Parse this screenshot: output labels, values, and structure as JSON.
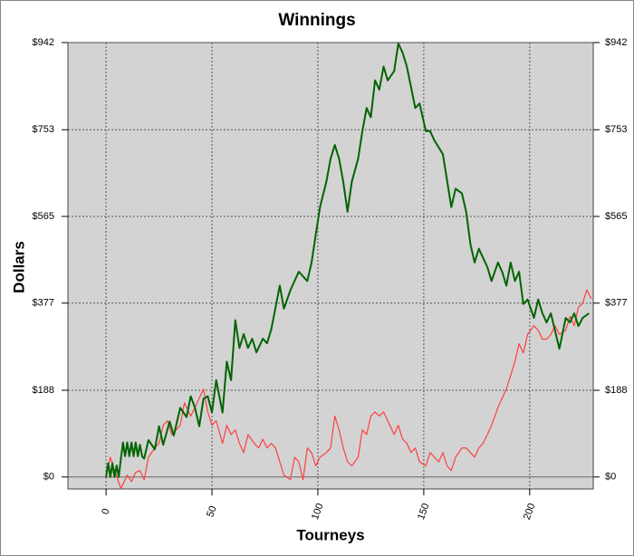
{
  "chart_data": {
    "type": "line",
    "title": "Winnings",
    "x_label": "Tourneys",
    "y_label": "Dollars",
    "xlim": [
      -18,
      230
    ],
    "xticks": [
      0,
      50,
      100,
      150,
      200
    ],
    "ylim": [
      -26,
      942
    ],
    "yticks": [
      {
        "value": 0,
        "label": "$0"
      },
      {
        "value": 188,
        "label": "$188"
      },
      {
        "value": 377,
        "label": "$377"
      },
      {
        "value": 565,
        "label": "$565"
      },
      {
        "value": 753,
        "label": "$753"
      },
      {
        "value": 942,
        "label": "$942"
      }
    ],
    "grid": true,
    "background": "#d3d3d3",
    "series": [
      {
        "color": "#ff4040",
        "x": [
          0,
          2,
          4,
          7,
          10,
          12,
          14,
          16,
          18,
          20,
          23,
          25,
          27,
          29,
          31,
          33,
          35,
          37,
          40,
          42,
          44,
          46,
          48,
          50,
          52,
          55,
          57,
          59,
          61,
          63,
          65,
          67,
          70,
          72,
          74,
          76,
          78,
          80,
          82,
          84,
          87,
          89,
          91,
          93,
          95,
          97,
          99,
          101,
          104,
          106,
          108,
          110,
          112,
          114,
          116,
          119,
          121,
          123,
          125,
          127,
          129,
          131,
          133,
          136,
          138,
          140,
          142,
          144,
          146,
          148,
          151,
          153,
          155,
          157,
          159,
          161,
          163,
          165,
          168,
          170,
          172,
          174,
          176,
          178,
          180,
          182,
          185,
          187,
          189,
          191,
          193,
          195,
          197,
          199,
          202,
          204,
          206,
          208,
          210,
          212,
          214,
          217,
          219,
          221,
          223,
          225,
          227,
          229
        ],
        "values": [
          0,
          43,
          14,
          -25,
          4,
          -10,
          10,
          14,
          -6,
          43,
          63,
          73,
          112,
          122,
          92,
          102,
          112,
          161,
          132,
          151,
          171,
          191,
          141,
          112,
          122,
          73,
          112,
          92,
          102,
          73,
          53,
          92,
          73,
          63,
          82,
          63,
          73,
          63,
          33,
          4,
          -6,
          43,
          33,
          -6,
          63,
          53,
          24,
          43,
          53,
          63,
          132,
          102,
          63,
          33,
          24,
          43,
          102,
          92,
          132,
          141,
          132,
          141,
          122,
          92,
          112,
          82,
          73,
          53,
          63,
          33,
          24,
          53,
          43,
          33,
          53,
          24,
          14,
          43,
          63,
          63,
          53,
          43,
          63,
          73,
          92,
          112,
          151,
          171,
          191,
          220,
          250,
          289,
          269,
          309,
          328,
          318,
          299,
          299,
          309,
          328,
          309,
          318,
          348,
          328,
          368,
          377,
          406,
          387
        ]
      },
      {
        "color": "#006400",
        "x": [
          0,
          1,
          2,
          3,
          4,
          5,
          6,
          7,
          8,
          9,
          10,
          11,
          12,
          13,
          14,
          15,
          16,
          17,
          18,
          20,
          23,
          25,
          27,
          30,
          32,
          35,
          38,
          40,
          42,
          44,
          46,
          48,
          50,
          52,
          55,
          57,
          59,
          61,
          63,
          65,
          67,
          69,
          71,
          74,
          76,
          78,
          82,
          84,
          87,
          91,
          95,
          97,
          99,
          101,
          104,
          106,
          108,
          110,
          112,
          114,
          116,
          119,
          121,
          123,
          125,
          127,
          129,
          131,
          133,
          136,
          138,
          140,
          142,
          146,
          148,
          151,
          153,
          155,
          159,
          163,
          165,
          168,
          170,
          172,
          174,
          176,
          180,
          182,
          185,
          187,
          189,
          191,
          193,
          195,
          197,
          199,
          202,
          204,
          206,
          208,
          210,
          214,
          217,
          219,
          221,
          223,
          225,
          228
        ],
        "values": [
          0,
          30,
          0,
          30,
          0,
          25,
          0,
          40,
          75,
          45,
          75,
          45,
          75,
          45,
          75,
          45,
          70,
          45,
          40,
          80,
          60,
          110,
          70,
          120,
          90,
          150,
          130,
          175,
          150,
          110,
          170,
          175,
          140,
          210,
          140,
          250,
          210,
          340,
          280,
          310,
          280,
          300,
          270,
          300,
          290,
          320,
          415,
          365,
          405,
          445,
          425,
          465,
          525,
          585,
          640,
          690,
          720,
          690,
          640,
          575,
          640,
          690,
          750,
          800,
          780,
          860,
          840,
          890,
          860,
          880,
          940,
          920,
          890,
          800,
          810,
          750,
          750,
          730,
          700,
          585,
          625,
          615,
          575,
          505,
          465,
          495,
          455,
          425,
          465,
          445,
          415,
          465,
          425,
          445,
          375,
          385,
          345,
          385,
          355,
          335,
          355,
          278,
          345,
          335,
          355,
          327,
          345,
          355
        ]
      }
    ]
  }
}
